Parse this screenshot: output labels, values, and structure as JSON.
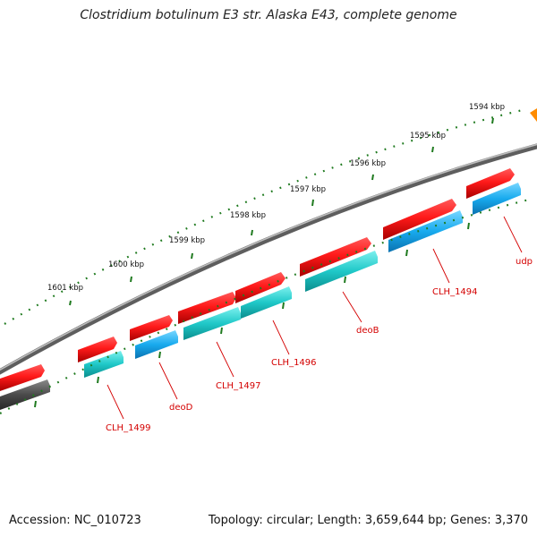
{
  "title": "Clostridium botulinum E3 str. Alaska E43, complete genome",
  "footer": {
    "accession": "Accession: NC_010723",
    "summary": "Topology: circular; Length: 3,659,644 bp; Genes: 3,370"
  },
  "scale_labels": [
    "1594 kbp",
    "1595 kbp",
    "1596 kbp",
    "1597 kbp",
    "1598 kbp",
    "1599 kbp",
    "1600 kbp",
    "1601 kbp"
  ],
  "gene_labels": [
    "udp",
    "CLH_1494",
    "deoB",
    "CLH_1496",
    "CLH_1497",
    "deoD",
    "CLH_1499"
  ],
  "colors": {
    "forward_strand": "#e60000",
    "reverse_teal": "#19bdbd",
    "reverse_blue": "#1aaae6",
    "reverse_gray": "#4a4a4a",
    "backbone": "#7d7d7d",
    "tick": "#1f7a1f",
    "label": "#d40000",
    "orange_feature": "#ff8c00"
  }
}
